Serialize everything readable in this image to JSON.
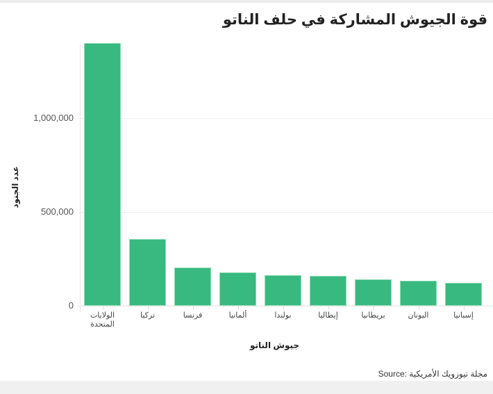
{
  "header": {
    "title": "قوة الجيوش المشاركة في حلف الناتو"
  },
  "axes": {
    "ylabel": "عدد الجنود",
    "xlabel": "جيوش الناتو",
    "yticks": [
      "1,000,000",
      "500,000",
      "0"
    ]
  },
  "footer": {
    "source": "Source: مجلة نيوزويك الأمريكية"
  },
  "colors": {
    "bar": "#38b97f",
    "bar_border": "#8fdcb6"
  },
  "chart_data": {
    "type": "bar",
    "title": "قوة الجيوش المشاركة في حلف الناتو",
    "xlabel": "جيوش الناتو",
    "ylabel": "عدد الجنود",
    "categories": [
      "الولايات المتحدة",
      "تركيا",
      "فرنسا",
      "ألمانيا",
      "بولندا",
      "إيطاليا",
      "بريطانيا",
      "اليونان",
      "إسبانيا"
    ],
    "values": [
      1400000,
      355200,
      203250,
      179400,
      164100,
      161000,
      141100,
      132000,
      121900
    ],
    "ylim": [
      0,
      1400000
    ],
    "yticks": [
      0,
      500000,
      1000000
    ],
    "grid": true,
    "legend": null,
    "source": "مجلة نيوزويك الأمريكية"
  }
}
